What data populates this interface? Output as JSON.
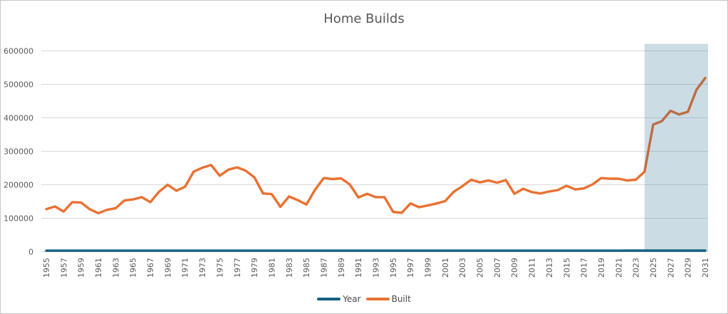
{
  "chart_data": {
    "type": "line",
    "title": "Home Builds",
    "x": [
      1955,
      1956,
      1957,
      1958,
      1959,
      1960,
      1961,
      1962,
      1963,
      1964,
      1965,
      1966,
      1967,
      1968,
      1969,
      1970,
      1971,
      1972,
      1973,
      1974,
      1975,
      1976,
      1977,
      1978,
      1979,
      1980,
      1981,
      1982,
      1983,
      1984,
      1985,
      1986,
      1987,
      1988,
      1989,
      1990,
      1991,
      1992,
      1993,
      1994,
      1995,
      1996,
      1997,
      1998,
      1999,
      2000,
      2001,
      2002,
      2003,
      2004,
      2005,
      2006,
      2007,
      2008,
      2009,
      2010,
      2011,
      2012,
      2013,
      2014,
      2015,
      2016,
      2017,
      2018,
      2019,
      2020,
      2021,
      2022,
      2023,
      2024,
      2025,
      2026,
      2027,
      2028,
      2029,
      2030,
      2031
    ],
    "x_tick_step": 2,
    "xlabel": "",
    "ylabel": "",
    "ylim": [
      0,
      600000
    ],
    "y_tick_step": 100000,
    "y_tick_labels": [
      "0",
      "100000",
      "200000",
      "300000",
      "400000",
      "500000",
      "600000"
    ],
    "grid": true,
    "legend_position": "bottom",
    "series": [
      {
        "name": "Year",
        "color": "#156082",
        "values": [
          1955,
          1956,
          1957,
          1958,
          1959,
          1960,
          1961,
          1962,
          1963,
          1964,
          1965,
          1966,
          1967,
          1968,
          1969,
          1970,
          1971,
          1972,
          1973,
          1974,
          1975,
          1976,
          1977,
          1978,
          1979,
          1980,
          1981,
          1982,
          1983,
          1984,
          1985,
          1986,
          1987,
          1988,
          1989,
          1990,
          1991,
          1992,
          1993,
          1994,
          1995,
          1996,
          1997,
          1998,
          1999,
          2000,
          2001,
          2002,
          2003,
          2004,
          2005,
          2006,
          2007,
          2008,
          2009,
          2010,
          2011,
          2012,
          2013,
          2014,
          2015,
          2016,
          2017,
          2018,
          2019,
          2020,
          2021,
          2022,
          2023,
          2024,
          2025,
          2026,
          2027,
          2028,
          2029,
          2030,
          2031
        ]
      },
      {
        "name": "Built",
        "color": "#E97132",
        "values": [
          126000,
          134000,
          119000,
          147000,
          146000,
          126000,
          114000,
          124000,
          129000,
          152000,
          155000,
          162000,
          147000,
          178000,
          199000,
          181000,
          193000,
          238000,
          250000,
          258000,
          226000,
          244000,
          251000,
          241000,
          221000,
          173000,
          171000,
          133000,
          164000,
          153000,
          140000,
          184000,
          219000,
          216000,
          218000,
          200000,
          161000,
          172000,
          162000,
          162000,
          118000,
          115000,
          143000,
          132000,
          137000,
          143000,
          150000,
          178000,
          195000,
          214000,
          206000,
          212000,
          205000,
          213000,
          172000,
          187000,
          177000,
          173000,
          179000,
          183000,
          196000,
          185000,
          188000,
          200000,
          219000,
          217000,
          217000,
          212000,
          214000,
          238000,
          379000,
          389000,
          420000,
          409000,
          417000,
          483000,
          518000
        ]
      }
    ],
    "highlight_region": {
      "from_x": 2024,
      "to_plot_right": true,
      "top_value": 620000,
      "fill": "#156082",
      "fill_opacity": 0.22
    },
    "gridline_color": "#D9D9D9",
    "tick_label_color": "#595959",
    "title_color": "#595959"
  }
}
